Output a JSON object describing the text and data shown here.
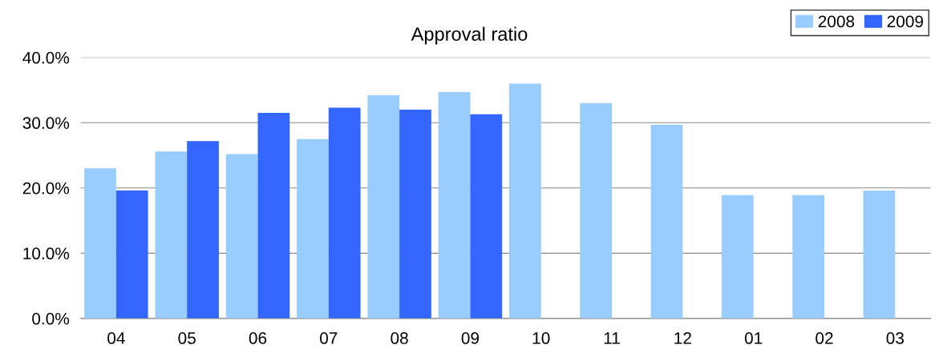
{
  "chart_data": {
    "type": "bar",
    "title": "Approval ratio",
    "categories": [
      "04",
      "05",
      "06",
      "07",
      "08",
      "09",
      "10",
      "11",
      "12",
      "01",
      "02",
      "03"
    ],
    "series": [
      {
        "name": "2008",
        "color": "#99ccff",
        "values": [
          23.0,
          25.6,
          25.2,
          27.5,
          34.2,
          34.7,
          36.0,
          33.0,
          29.7,
          18.9,
          18.9,
          19.6
        ]
      },
      {
        "name": "2009",
        "color": "#3366ff",
        "values": [
          19.6,
          27.2,
          31.5,
          32.3,
          32.0,
          31.3,
          null,
          null,
          null,
          null,
          null,
          null
        ]
      }
    ],
    "ylim": [
      0,
      40
    ],
    "yticks": [
      {
        "value": 0,
        "label": "0.0%"
      },
      {
        "value": 10,
        "label": "10.0%"
      },
      {
        "value": 20,
        "label": "20.0%"
      },
      {
        "value": 30,
        "label": "30.0%"
      },
      {
        "value": 40,
        "label": "40.0%"
      }
    ],
    "grid": "y",
    "legend": "top right"
  }
}
